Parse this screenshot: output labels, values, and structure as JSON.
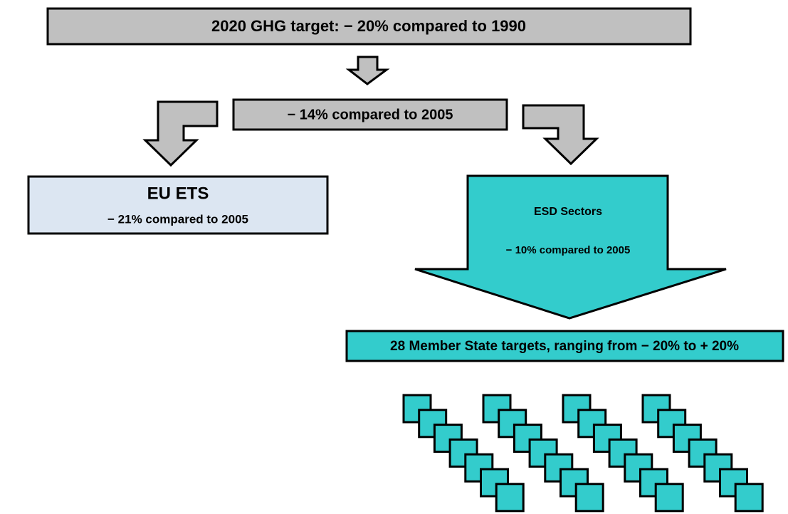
{
  "top_target": "2020 GHG target: − 20% compared to 1990",
  "overall": "− 14% compared to 2005",
  "ets": {
    "title": "EU ETS",
    "subtitle": "− 21% compared  to 2005"
  },
  "esd": {
    "title": "ESD Sectors",
    "subtitle": "− 10% compared to 2005"
  },
  "member_states": "28 Member State targets, ranging from − 20% to + 20%"
}
